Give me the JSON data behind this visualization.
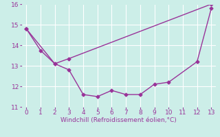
{
  "line1_x": [
    0,
    1,
    2,
    3,
    4,
    5,
    6,
    7,
    8,
    9,
    10,
    12,
    13
  ],
  "line1_y": [
    14.8,
    13.75,
    13.1,
    12.8,
    11.6,
    11.5,
    11.8,
    11.6,
    11.6,
    12.1,
    12.2,
    13.2,
    15.8
  ],
  "line2_x": [
    0,
    2,
    3,
    13
  ],
  "line2_y": [
    14.8,
    13.1,
    13.35,
    16.0
  ],
  "line_color": "#993399",
  "marker": "D",
  "markersize": 2.5,
  "xlabel": "Windchill (Refroidissement éolien,°C)",
  "xlim": [
    -0.3,
    13.3
  ],
  "ylim": [
    11,
    16
  ],
  "yticks": [
    11,
    12,
    13,
    14,
    15,
    16
  ],
  "xticks": [
    0,
    1,
    2,
    3,
    4,
    5,
    6,
    7,
    8,
    9,
    10,
    11,
    12,
    13
  ],
  "bg_color": "#cceee8",
  "grid_color": "#ffffff",
  "tick_color": "#993399",
  "label_color": "#993399",
  "linewidth": 1.0
}
